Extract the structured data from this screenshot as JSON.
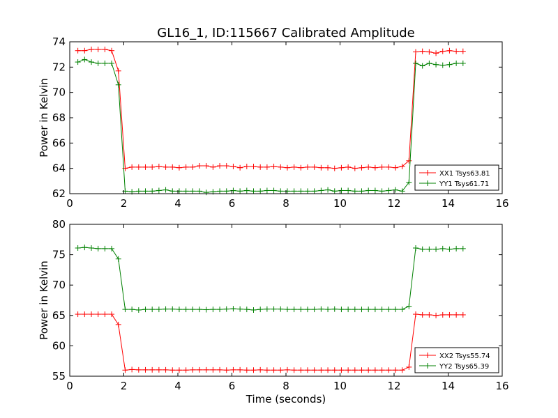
{
  "figure": {
    "title": "GL16_1, ID:115667 Calibrated Amplitude"
  },
  "chart_data": [
    {
      "type": "line",
      "xlabel": "",
      "ylabel": "Power in Kelvin",
      "xlim": [
        0,
        16
      ],
      "ylim": [
        62,
        74
      ],
      "xticks": [
        0,
        2,
        4,
        6,
        8,
        10,
        12,
        14,
        16
      ],
      "yticks": [
        62,
        64,
        66,
        68,
        70,
        72,
        74
      ],
      "grid": false,
      "legend_position": "lower-right",
      "series": [
        {
          "name": "XX1 Tsys63.81",
          "color": "#ff0000",
          "x": [
            0.3,
            0.55,
            0.8,
            1.05,
            1.3,
            1.55,
            1.8,
            2.05,
            2.3,
            2.55,
            2.8,
            3.05,
            3.3,
            3.55,
            3.8,
            4.05,
            4.3,
            4.55,
            4.8,
            5.05,
            5.3,
            5.55,
            5.8,
            6.05,
            6.3,
            6.55,
            6.8,
            7.05,
            7.3,
            7.55,
            7.8,
            8.05,
            8.3,
            8.55,
            8.8,
            9.05,
            9.3,
            9.55,
            9.8,
            10.05,
            10.3,
            10.55,
            10.8,
            11.05,
            11.3,
            11.55,
            11.8,
            12.05,
            12.3,
            12.55,
            12.8,
            13.05,
            13.3,
            13.55,
            13.8,
            14.05,
            14.3,
            14.55
          ],
          "y": [
            73.3,
            73.3,
            73.4,
            73.4,
            73.4,
            73.3,
            71.7,
            64.0,
            64.1,
            64.1,
            64.1,
            64.1,
            64.15,
            64.1,
            64.1,
            64.05,
            64.1,
            64.1,
            64.2,
            64.2,
            64.1,
            64.2,
            64.2,
            64.15,
            64.05,
            64.15,
            64.15,
            64.1,
            64.1,
            64.15,
            64.1,
            64.05,
            64.1,
            64.05,
            64.1,
            64.1,
            64.05,
            64.05,
            64.0,
            64.05,
            64.1,
            64.0,
            64.05,
            64.1,
            64.05,
            64.1,
            64.1,
            64.05,
            64.15,
            64.6,
            73.2,
            73.25,
            73.2,
            73.1,
            73.25,
            73.3,
            73.25,
            73.25
          ]
        },
        {
          "name": "YY1 Tsys61.71",
          "color": "#008000",
          "x": [
            0.3,
            0.55,
            0.8,
            1.05,
            1.3,
            1.55,
            1.8,
            2.05,
            2.3,
            2.55,
            2.8,
            3.05,
            3.3,
            3.55,
            3.8,
            4.05,
            4.3,
            4.55,
            4.8,
            5.05,
            5.3,
            5.55,
            5.8,
            6.05,
            6.3,
            6.55,
            6.8,
            7.05,
            7.3,
            7.55,
            7.8,
            8.05,
            8.3,
            8.55,
            8.8,
            9.05,
            9.3,
            9.55,
            9.8,
            10.05,
            10.3,
            10.55,
            10.8,
            11.05,
            11.3,
            11.55,
            11.8,
            12.05,
            12.3,
            12.55,
            12.8,
            13.05,
            13.3,
            13.55,
            13.8,
            14.05,
            14.3,
            14.55
          ],
          "y": [
            72.4,
            72.6,
            72.4,
            72.3,
            72.3,
            72.3,
            70.6,
            62.2,
            62.15,
            62.2,
            62.2,
            62.2,
            62.25,
            62.3,
            62.2,
            62.2,
            62.2,
            62.2,
            62.2,
            62.1,
            62.15,
            62.2,
            62.2,
            62.25,
            62.2,
            62.25,
            62.2,
            62.2,
            62.25,
            62.25,
            62.2,
            62.2,
            62.2,
            62.2,
            62.2,
            62.2,
            62.25,
            62.3,
            62.2,
            62.25,
            62.25,
            62.2,
            62.2,
            62.25,
            62.25,
            62.2,
            62.25,
            62.3,
            62.2,
            62.9,
            72.3,
            72.1,
            72.3,
            72.2,
            72.15,
            72.2,
            72.3,
            72.3
          ]
        }
      ]
    },
    {
      "type": "line",
      "xlabel": "Time (seconds)",
      "ylabel": "Power in Kelvin",
      "xlim": [
        0,
        16
      ],
      "ylim": [
        55,
        80
      ],
      "xticks": [
        0,
        2,
        4,
        6,
        8,
        10,
        12,
        14,
        16
      ],
      "yticks": [
        55,
        60,
        65,
        70,
        75,
        80
      ],
      "grid": false,
      "legend_position": "lower-right",
      "series": [
        {
          "name": "XX2 Tsys55.74",
          "color": "#ff0000",
          "x": [
            0.3,
            0.55,
            0.8,
            1.05,
            1.3,
            1.55,
            1.8,
            2.05,
            2.3,
            2.55,
            2.8,
            3.05,
            3.3,
            3.55,
            3.8,
            4.05,
            4.3,
            4.55,
            4.8,
            5.05,
            5.3,
            5.55,
            5.8,
            6.05,
            6.3,
            6.55,
            6.8,
            7.05,
            7.3,
            7.55,
            7.8,
            8.05,
            8.3,
            8.55,
            8.8,
            9.05,
            9.3,
            9.55,
            9.8,
            10.05,
            10.3,
            10.55,
            10.8,
            11.05,
            11.3,
            11.55,
            11.8,
            12.05,
            12.3,
            12.55,
            12.8,
            13.05,
            13.3,
            13.55,
            13.8,
            14.05,
            14.3,
            14.55
          ],
          "y": [
            65.2,
            65.2,
            65.2,
            65.2,
            65.2,
            65.2,
            63.5,
            56.0,
            56.1,
            56.05,
            56.05,
            56.05,
            56.05,
            56.05,
            56.0,
            56.0,
            56.0,
            56.05,
            56.05,
            56.05,
            56.05,
            56.05,
            56.0,
            56.05,
            56.05,
            56.0,
            56.0,
            56.05,
            56.0,
            56.0,
            56.0,
            56.05,
            56.0,
            56.0,
            56.0,
            56.0,
            56.0,
            56.0,
            56.0,
            56.0,
            56.0,
            56.0,
            56.0,
            56.0,
            56.0,
            56.0,
            56.0,
            56.0,
            56.0,
            56.5,
            65.2,
            65.1,
            65.1,
            65.0,
            65.1,
            65.1,
            65.1,
            65.1
          ]
        },
        {
          "name": "YY2 Tsys65.39",
          "color": "#008000",
          "x": [
            0.3,
            0.55,
            0.8,
            1.05,
            1.3,
            1.55,
            1.8,
            2.05,
            2.3,
            2.55,
            2.8,
            3.05,
            3.3,
            3.55,
            3.8,
            4.05,
            4.3,
            4.55,
            4.8,
            5.05,
            5.3,
            5.55,
            5.8,
            6.05,
            6.3,
            6.55,
            6.8,
            7.05,
            7.3,
            7.55,
            7.8,
            8.05,
            8.3,
            8.55,
            8.8,
            9.05,
            9.3,
            9.55,
            9.8,
            10.05,
            10.3,
            10.55,
            10.8,
            11.05,
            11.3,
            11.55,
            11.8,
            12.05,
            12.3,
            12.55,
            12.8,
            13.05,
            13.3,
            13.55,
            13.8,
            14.05,
            14.3,
            14.55
          ],
          "y": [
            76.1,
            76.2,
            76.1,
            76.0,
            76.0,
            76.0,
            74.3,
            66.0,
            66.0,
            65.9,
            66.0,
            66.0,
            66.0,
            66.05,
            66.05,
            66.0,
            66.0,
            66.0,
            66.0,
            65.95,
            66.0,
            66.0,
            66.05,
            66.1,
            66.05,
            66.0,
            65.9,
            66.0,
            66.05,
            66.05,
            66.05,
            66.0,
            66.0,
            66.0,
            66.0,
            66.0,
            66.05,
            66.0,
            66.05,
            66.0,
            66.0,
            66.0,
            66.0,
            66.0,
            66.0,
            66.0,
            66.0,
            66.0,
            66.0,
            66.5,
            76.1,
            75.9,
            75.9,
            75.9,
            76.0,
            75.9,
            76.0,
            76.0
          ]
        }
      ]
    }
  ]
}
